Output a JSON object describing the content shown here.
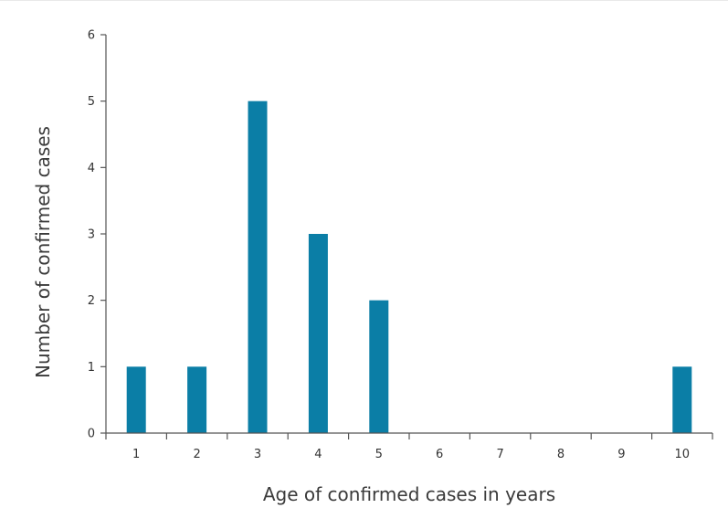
{
  "chart_data": {
    "type": "bar",
    "title": "",
    "xlabel": "Age of confirmed cases in years",
    "ylabel": "Number of confirmed cases",
    "categories": [
      "1",
      "2",
      "3",
      "4",
      "5",
      "6",
      "7",
      "8",
      "9",
      "10"
    ],
    "values": [
      1,
      1,
      5,
      3,
      2,
      0,
      0,
      0,
      0,
      1
    ],
    "ylim": [
      0,
      6
    ],
    "yticks": [
      "0",
      "1",
      "2",
      "3",
      "4",
      "5",
      "6"
    ],
    "bar_color": "#0b7ea6",
    "axis_color": "#555555",
    "grid": false,
    "legend": "none"
  }
}
